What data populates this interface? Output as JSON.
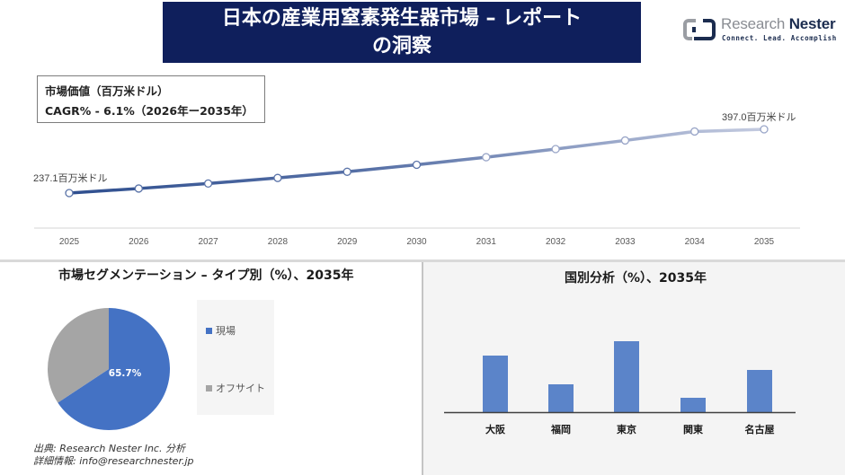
{
  "header": {
    "title_line1": "日本の産業用窒素発生器市場 – レポート",
    "title_line2": "の洞察"
  },
  "logo": {
    "name_part1": "Research",
    "name_part2": "Nester",
    "tagline": "Connect. Lead. Accomplish"
  },
  "info_box": {
    "line1": "市場価値（百万米ドル）",
    "line2": "CAGR% - 6.1%（2026年ー2035年）"
  },
  "segment_section": {
    "title": "市場セグメンテーション – タイプ別（%）、2035年"
  },
  "country_section": {
    "title": "国別分析（%）、2035年"
  },
  "source": {
    "line1": "出典: Research Nester Inc. 分析",
    "line2": "詳細情報: info@researchnester.jp"
  },
  "colors": {
    "title_bg": "#0f1f5c",
    "line_start": "#2f4f8f",
    "line_end": "#c4cbe0",
    "pie_onsite": "#4472c4",
    "pie_offsite": "#a5a5a5",
    "bar": "#5b84c9"
  },
  "chart_data": [
    {
      "type": "line",
      "title": "市場価値（百万米ドル）",
      "x": [
        "2025",
        "2026",
        "2027",
        "2028",
        "2029",
        "2030",
        "2031",
        "2032",
        "2033",
        "2034",
        "2035"
      ],
      "values": [
        237.1,
        248.5,
        261.0,
        275.0,
        290.5,
        308.0,
        327.0,
        347.5,
        369.0,
        391.5,
        397.0
      ],
      "annotations": [
        {
          "x": "2025",
          "label": "237.1百万米ドル"
        },
        {
          "x": "2035",
          "label": "397.0百万米ドル"
        }
      ],
      "xlabel": "",
      "ylabel": "",
      "grid": false
    },
    {
      "type": "pie",
      "title": "市場セグメンテーション – タイプ別（%）、2035年",
      "categories": [
        "現場",
        "オフサイト"
      ],
      "values": [
        65.7,
        34.3
      ],
      "data_labels": [
        "65.7%",
        ""
      ],
      "legend_position": "right"
    },
    {
      "type": "bar",
      "title": "国別分析（%）、2035年",
      "categories": [
        "大阪",
        "福岡",
        "東京",
        "関東",
        "名古屋"
      ],
      "values": [
        63,
        31,
        79,
        16,
        47
      ],
      "xlabel": "",
      "ylabel": "",
      "grid": false
    }
  ]
}
